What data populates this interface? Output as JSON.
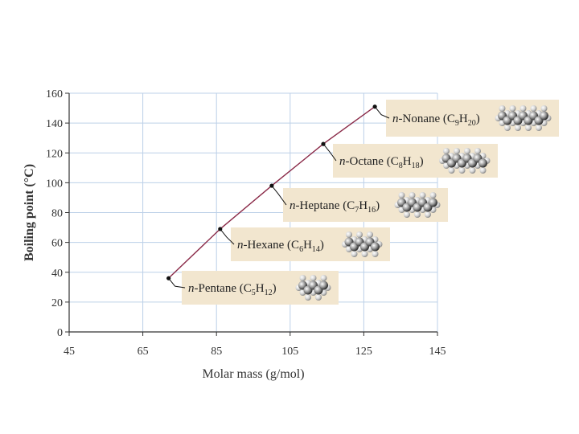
{
  "chart_data": {
    "type": "line",
    "title": "",
    "xlabel": "Molar mass (g/mol)",
    "ylabel": "Boiling point (°C)",
    "xlim": [
      45,
      145
    ],
    "ylim": [
      0,
      160
    ],
    "x_ticks": [
      45,
      65,
      85,
      105,
      125,
      145
    ],
    "y_ticks": [
      0,
      20,
      40,
      60,
      80,
      100,
      120,
      140,
      160
    ],
    "grid": true,
    "colors": {
      "line": "#8a2a48",
      "grid": "#bcd0e8",
      "label_bg": "#f2e6cf"
    },
    "points": [
      {
        "x": 72,
        "y": 36,
        "label": {
          "prefix": "n",
          "name": "-Pentane (C",
          "c": "5",
          "h": "H",
          "hn": "12",
          "close": ")"
        },
        "carbons": 5
      },
      {
        "x": 86,
        "y": 69,
        "label": {
          "prefix": "n",
          "name": "-Hexane (C",
          "c": "6",
          "h": "H",
          "hn": "14",
          "close": ")"
        },
        "carbons": 6
      },
      {
        "x": 100,
        "y": 98,
        "label": {
          "prefix": "n",
          "name": "-Heptane (C",
          "c": "7",
          "h": "H",
          "hn": "16",
          "close": ")"
        },
        "carbons": 7
      },
      {
        "x": 114,
        "y": 126,
        "label": {
          "prefix": "n",
          "name": "-Octane (C",
          "c": "8",
          "h": "H",
          "hn": "18",
          "close": ")"
        },
        "carbons": 8
      },
      {
        "x": 128,
        "y": 151,
        "label": {
          "prefix": "n",
          "name": "-Nonane (C",
          "c": "9",
          "h": "H",
          "hn": "20",
          "close": ")"
        },
        "carbons": 9
      }
    ]
  }
}
